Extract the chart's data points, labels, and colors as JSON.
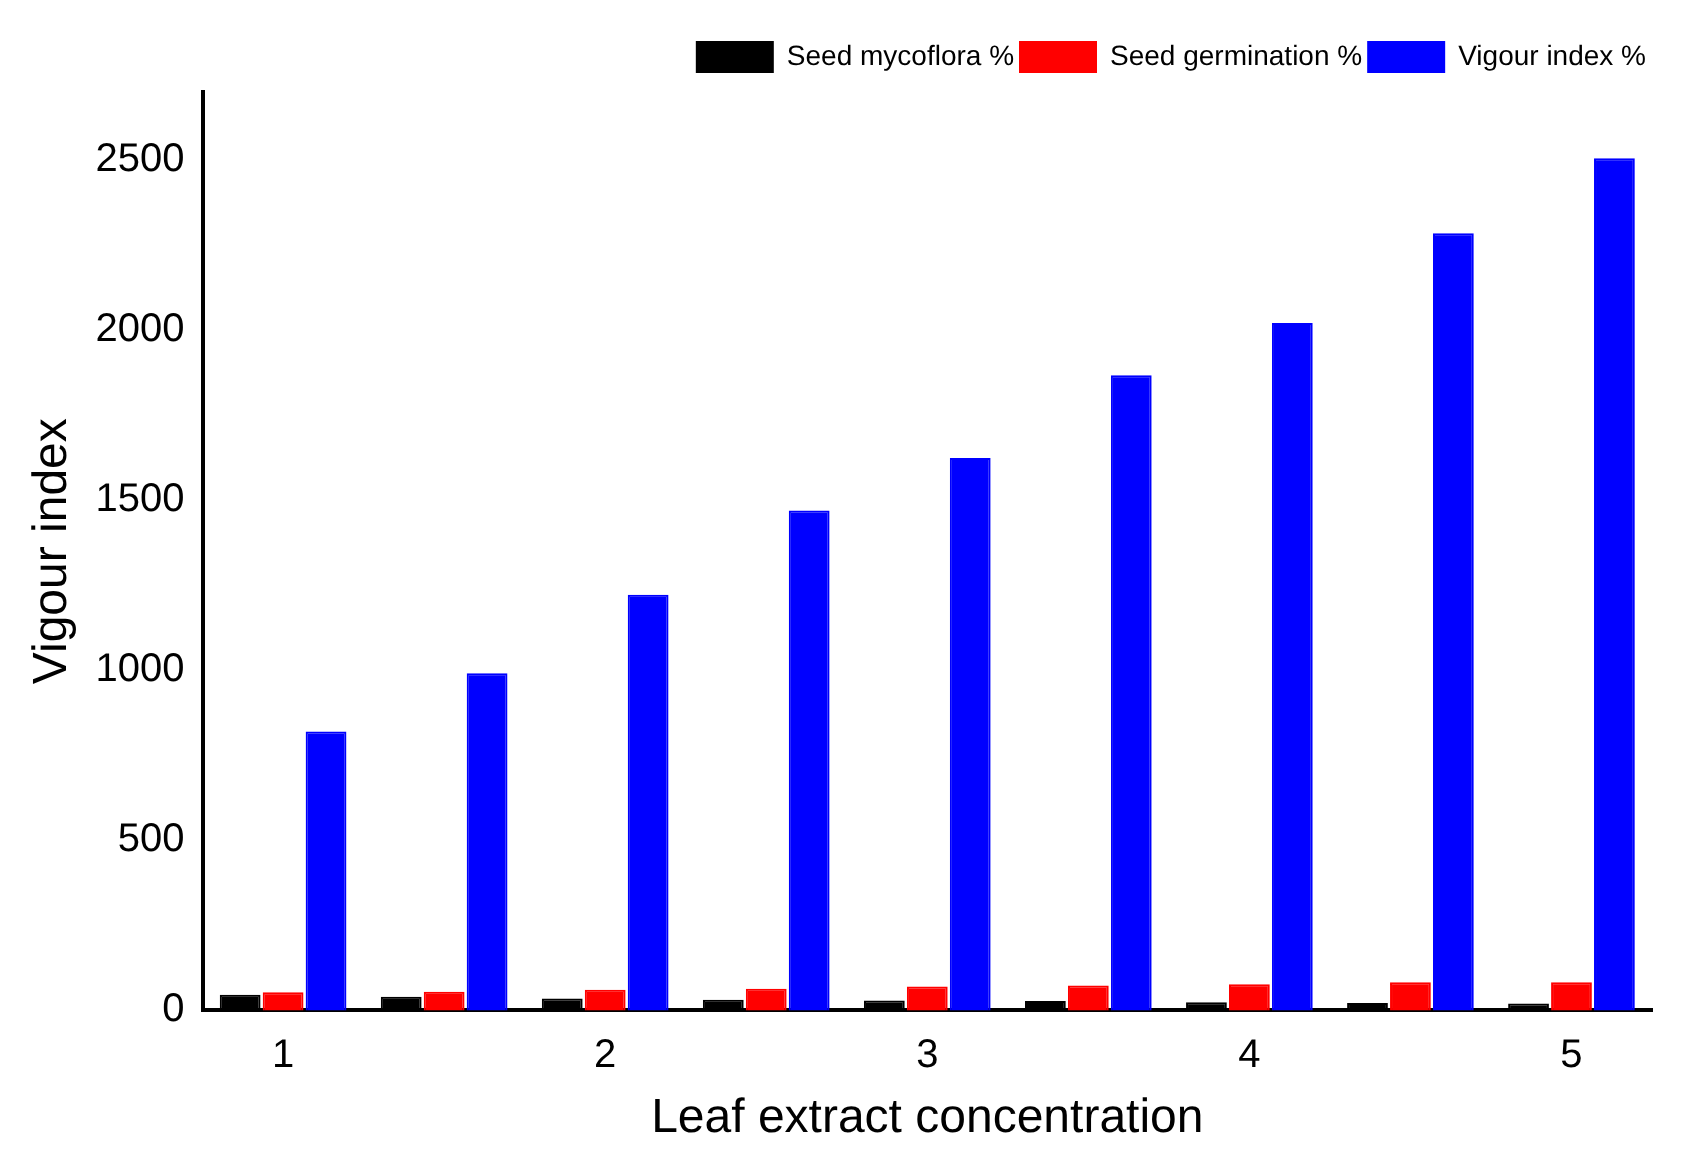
{
  "chart_data": {
    "type": "bar",
    "xlabel": "Leaf extract concentration",
    "ylabel": "Vigour index",
    "categories": [
      "1",
      null,
      "2",
      null,
      "3",
      null,
      "4",
      null,
      "5"
    ],
    "series": [
      {
        "name": "Seed mycoflora %",
        "color": "#000000",
        "values": [
          46,
          40,
          35,
          31,
          29,
          28,
          24,
          22,
          20
        ]
      },
      {
        "name": "Seed germination %",
        "color": "#ff0000",
        "values": [
          53,
          55,
          61,
          64,
          70,
          73,
          77,
          83,
          83
        ]
      },
      {
        "name": "Vigour index %",
        "color": "#0000ff",
        "values": [
          820,
          991,
          1222,
          1470,
          1624,
          1867,
          2021,
          2285,
          2505
        ]
      }
    ],
    "ylim": [
      0,
      2700
    ],
    "yticks": [
      0,
      500,
      1000,
      1500,
      2000,
      2500
    ],
    "grid": false,
    "legend": "top right"
  }
}
